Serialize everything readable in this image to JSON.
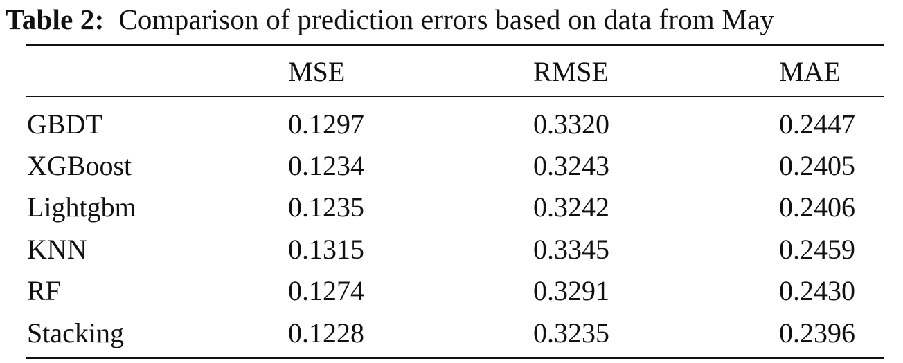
{
  "caption": {
    "label": "Table 2:",
    "text": "Comparison of prediction errors based on data from May"
  },
  "table": {
    "headers": [
      "",
      "MSE",
      "RMSE",
      "MAE"
    ],
    "rows": [
      [
        "GBDT",
        "0.1297",
        "0.3320",
        "0.2447"
      ],
      [
        "XGBoost",
        "0.1234",
        "0.3243",
        "0.2405"
      ],
      [
        "Lightgbm",
        "0.1235",
        "0.3242",
        "0.2406"
      ],
      [
        "KNN",
        "0.1315",
        "0.3345",
        "0.2459"
      ],
      [
        "RF",
        "0.1274",
        "0.3291",
        "0.2430"
      ],
      [
        "Stacking",
        "0.1228",
        "0.3235",
        "0.2396"
      ]
    ]
  }
}
